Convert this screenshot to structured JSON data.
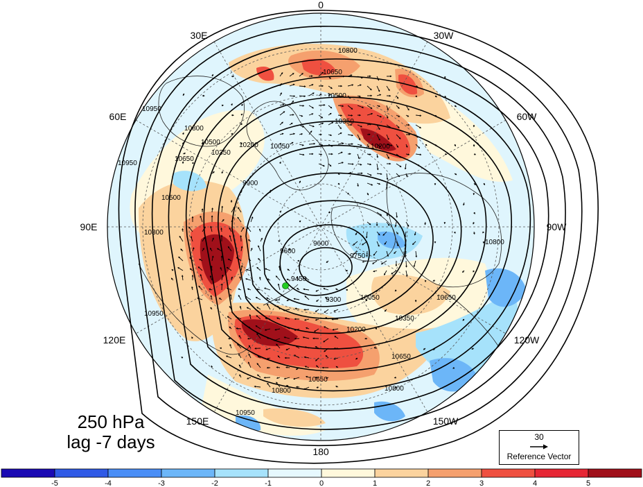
{
  "map": {
    "projection": "north-polar-stereographic",
    "longitude_labels": [
      {
        "id": "0",
        "text": "0"
      },
      {
        "id": "30w",
        "text": "30W"
      },
      {
        "id": "60w",
        "text": "60W"
      },
      {
        "id": "90w",
        "text": "90W"
      },
      {
        "id": "120w",
        "text": "120W"
      },
      {
        "id": "150w",
        "text": "150W"
      },
      {
        "id": "180",
        "text": "180"
      },
      {
        "id": "150e",
        "text": "150E"
      },
      {
        "id": "120e",
        "text": "120E"
      },
      {
        "id": "90e",
        "text": "90E"
      },
      {
        "id": "60e",
        "text": "60E"
      },
      {
        "id": "30e",
        "text": "30E"
      }
    ],
    "contour_levels": [
      "9300",
      "9450",
      "9600",
      "9750",
      "9900",
      "10050",
      "10200",
      "10350",
      "10500",
      "10650",
      "10800",
      "10950"
    ],
    "contour_labels": [
      "10800",
      "10650",
      "10500",
      "10350",
      "10200",
      "10950",
      "10800",
      "10650",
      "10500",
      "10350",
      "10200",
      "10050",
      "9900",
      "9600",
      "9600",
      "9750",
      "9450",
      "9300",
      "10050",
      "10350",
      "10200",
      "10650",
      "10800",
      "10950",
      "10650",
      "10800",
      "10950",
      "10500",
      "10650",
      "10800",
      "10800",
      "10950"
    ],
    "marker": {
      "color": "#22cc22"
    },
    "fill_colors": {
      "-5": "#1a0ab4",
      "-4": "#3060ee",
      "-3": "#4a8ef6",
      "-2": "#84c8f8",
      "-1": "#b8eefc",
      "0": "#e6f8fe",
      "0p": "#fff8dc",
      "1": "#fbd8a8",
      "2": "#f5a070",
      "3": "#ef5040",
      "4": "#e8303c",
      "5": "#a0101a"
    }
  },
  "title": {
    "line1": "250 hPa",
    "line2": "lag -7 days"
  },
  "reference_vector": {
    "value": "30",
    "label": "Reference Vector"
  },
  "colorbar": {
    "ticks": [
      "-5",
      "-4",
      "-3",
      "-2",
      "-1",
      "0",
      "1",
      "2",
      "3",
      "4",
      "5"
    ],
    "colors": [
      "#1a0ab4",
      "#2f5ae6",
      "#4a8ef6",
      "#6cb6f8",
      "#a6e2fb",
      "#e6f8fe",
      "#fff8dc",
      "#fbd39e",
      "#f5a06e",
      "#ef5040",
      "#e62634",
      "#a0101a"
    ]
  }
}
